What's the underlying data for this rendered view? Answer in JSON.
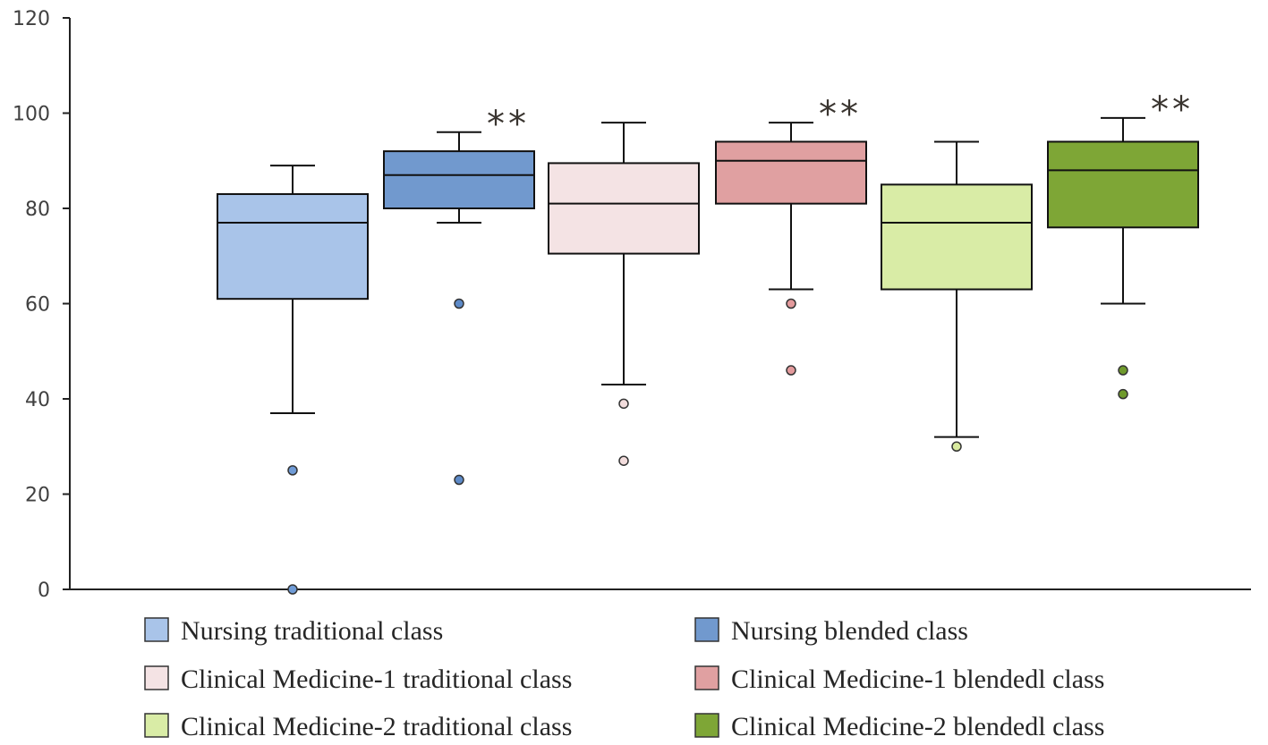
{
  "chart_data": {
    "type": "box",
    "title": "",
    "xlabel": "",
    "ylabel": "",
    "ylim": [
      0,
      120
    ],
    "yticks": [
      0,
      20,
      40,
      60,
      80,
      100,
      120
    ],
    "grid": false,
    "legend_position": "bottom",
    "series": [
      {
        "name": "Nursing traditional class",
        "color": "#a9c4e9",
        "min": 37,
        "q1": 61,
        "median": 77,
        "q3": 83,
        "max": 89,
        "outliers": [
          25,
          0
        ],
        "outlier_color": "#6f9bd6",
        "significance": ""
      },
      {
        "name": "Nursing blended class",
        "color": "#7199ce",
        "min": 77,
        "q1": 80,
        "median": 87,
        "q3": 92,
        "max": 96,
        "outliers": [
          60,
          23
        ],
        "outlier_color": "#5d8ac8",
        "significance": "**"
      },
      {
        "name": "Clinical Medicine-1 traditional class",
        "color": "#f4e3e4",
        "min": 43,
        "q1": 70.5,
        "median": 81,
        "q3": 89.5,
        "max": 98,
        "outliers": [
          39,
          27
        ],
        "outlier_color": "#f2dcdc",
        "significance": ""
      },
      {
        "name": "Clinical Medicine-1 blendedl class",
        "color": "#e0a0a1",
        "min": 63,
        "q1": 81,
        "median": 90,
        "q3": 94,
        "max": 98,
        "outliers": [
          60,
          46
        ],
        "outlier_color": "#e39a9c",
        "significance": "**"
      },
      {
        "name": "Clinical Medicine-2 traditional class",
        "color": "#d9eca6",
        "min": 32,
        "q1": 63,
        "median": 77,
        "q3": 85,
        "max": 94,
        "outliers": [
          30
        ],
        "outlier_color": "#d8ea9e",
        "significance": ""
      },
      {
        "name": "Clinical Medicine-2 blendedl class",
        "color": "#7ea636",
        "min": 60,
        "q1": 76,
        "median": 88,
        "q3": 94,
        "max": 99,
        "outliers": [
          46,
          41
        ],
        "outlier_color": "#6f9a2c",
        "significance": "**"
      }
    ]
  }
}
